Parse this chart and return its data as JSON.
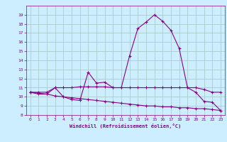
{
  "x": [
    0,
    1,
    2,
    3,
    4,
    5,
    6,
    7,
    8,
    9,
    10,
    11,
    12,
    13,
    14,
    15,
    16,
    17,
    18,
    19,
    20,
    21,
    22,
    23
  ],
  "line1": [
    10.5,
    10.3,
    10.3,
    11.0,
    10.0,
    9.7,
    9.6,
    12.7,
    11.5,
    11.6,
    11.0,
    11.0,
    14.5,
    17.5,
    18.2,
    19.0,
    18.3,
    17.3,
    15.3,
    11.0,
    10.5,
    9.5,
    9.4,
    8.5
  ],
  "line2": [
    10.5,
    10.5,
    10.5,
    11.0,
    11.0,
    11.0,
    11.1,
    11.1,
    11.1,
    11.1,
    11.0,
    11.0,
    11.0,
    11.0,
    11.0,
    11.0,
    11.0,
    11.0,
    11.0,
    11.0,
    11.0,
    10.8,
    10.5,
    10.5
  ],
  "line3": [
    10.5,
    10.4,
    10.3,
    10.1,
    10.0,
    9.9,
    9.8,
    9.7,
    9.6,
    9.5,
    9.4,
    9.3,
    9.2,
    9.1,
    9.0,
    9.0,
    8.9,
    8.9,
    8.8,
    8.8,
    8.7,
    8.7,
    8.6,
    8.5
  ],
  "color": "#880088",
  "bg_color": "#cceeff",
  "grid_color": "#aacccc",
  "xlabel": "Windchill (Refroidissement éolien,°C)",
  "ylim": [
    8,
    20
  ],
  "xlim": [
    -0.5,
    23.5
  ],
  "yticks": [
    8,
    9,
    10,
    11,
    12,
    13,
    14,
    15,
    16,
    17,
    18,
    19
  ],
  "xticks": [
    0,
    1,
    2,
    3,
    4,
    5,
    6,
    7,
    8,
    9,
    10,
    11,
    12,
    13,
    14,
    15,
    16,
    17,
    18,
    19,
    20,
    21,
    22,
    23
  ]
}
